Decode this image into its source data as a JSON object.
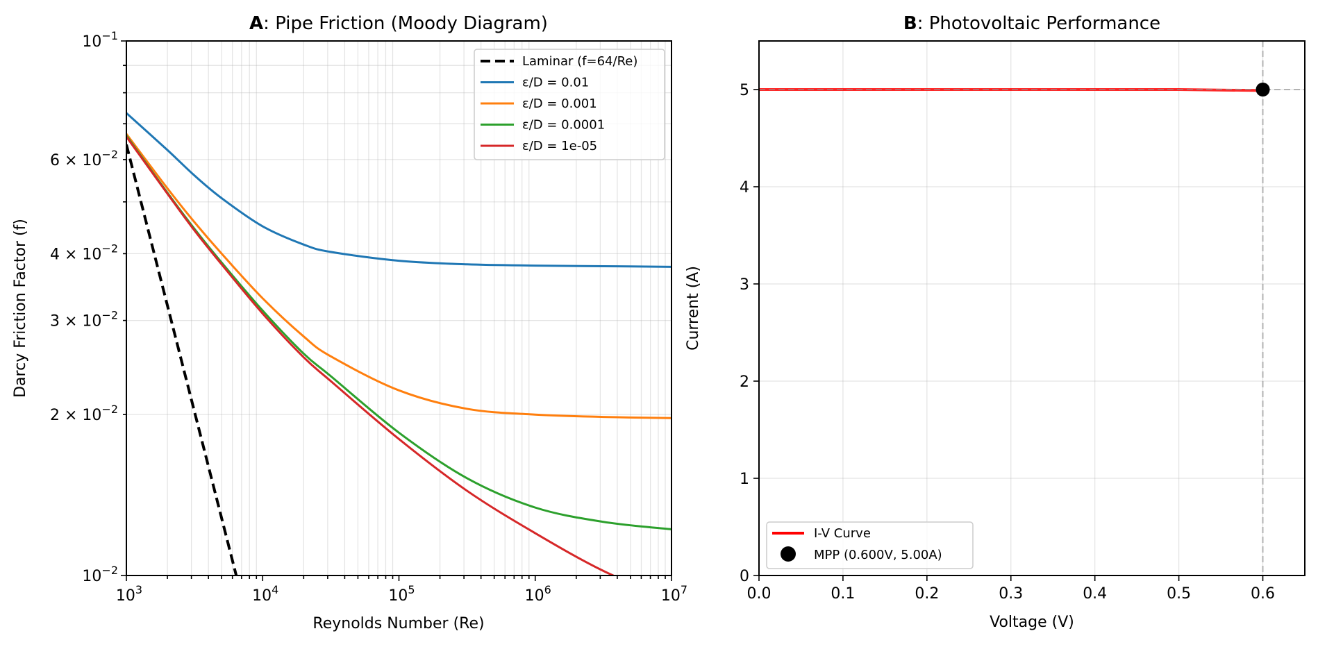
{
  "chart_data": [
    {
      "id": "A",
      "type": "line",
      "title_bold": "A",
      "title_rest": ": Pipe Friction (Moody Diagram)",
      "xlabel": "Reynolds Number (Re)",
      "ylabel": "Darcy Friction Factor (f)",
      "xscale": "log",
      "yscale": "log",
      "xlim": [
        1000,
        10000000
      ],
      "ylim": [
        0.01,
        0.1
      ],
      "xticks": [
        {
          "value": 1000,
          "base": "10",
          "exp": "3"
        },
        {
          "value": 10000,
          "base": "10",
          "exp": "4"
        },
        {
          "value": 100000,
          "base": "10",
          "exp": "5"
        },
        {
          "value": 1000000,
          "base": "10",
          "exp": "6"
        },
        {
          "value": 10000000,
          "base": "10",
          "exp": "7"
        }
      ],
      "yticks": [
        {
          "value": 0.1,
          "base": "10",
          "exp": "−1"
        },
        {
          "value": 0.06,
          "base": "6 × 10",
          "exp": "−2"
        },
        {
          "value": 0.04,
          "base": "4 × 10",
          "exp": "−2"
        },
        {
          "value": 0.03,
          "base": "3 × 10",
          "exp": "−2"
        },
        {
          "value": 0.02,
          "base": "2 × 10",
          "exp": "−2"
        },
        {
          "value": 0.01,
          "base": "10",
          "exp": "−2"
        }
      ],
      "grid": true,
      "legend_position": "top-right",
      "series": [
        {
          "name": "Laminar (f=64/Re)",
          "color": "#000000",
          "dashed": true,
          "x": [
            1000,
            2000,
            3000,
            4000,
            5000,
            6400
          ],
          "y": [
            0.064,
            0.032,
            0.02133,
            0.016,
            0.0128,
            0.01
          ]
        },
        {
          "name": "ε/D = 0.01",
          "color": "#1f77b4",
          "dashed": false,
          "x": [
            1000,
            2000,
            3162,
            5000,
            10000,
            20000,
            31623,
            100000,
            316228,
            1000000,
            3162278,
            10000000
          ],
          "y": [
            0.0733,
            0.0625,
            0.056,
            0.0508,
            0.045,
            0.0416,
            0.0403,
            0.0388,
            0.0382,
            0.038,
            0.0379,
            0.0378
          ]
        },
        {
          "name": "ε/D = 0.001",
          "color": "#ff7f0e",
          "dashed": false,
          "x": [
            1000,
            2000,
            3162,
            5000,
            10000,
            20000,
            31623,
            100000,
            316228,
            1000000,
            3162278,
            10000000
          ],
          "y": [
            0.067,
            0.053,
            0.0458,
            0.04,
            0.033,
            0.028,
            0.0257,
            0.0222,
            0.0205,
            0.02,
            0.0198,
            0.0197
          ]
        },
        {
          "name": "ε/D = 0.0001",
          "color": "#2ca02c",
          "dashed": false,
          "x": [
            1000,
            2000,
            3162,
            5000,
            10000,
            20000,
            31623,
            100000,
            316228,
            1000000,
            3162278,
            10000000
          ],
          "y": [
            0.0665,
            0.052,
            0.0445,
            0.0385,
            0.0313,
            0.026,
            0.0236,
            0.0185,
            0.0152,
            0.0134,
            0.0126,
            0.0122
          ]
        },
        {
          "name": "ε/D = 1e-05",
          "color": "#d62728",
          "dashed": false,
          "x": [
            1000,
            2000,
            3162,
            5000,
            10000,
            20000,
            31623,
            100000,
            316228,
            1000000,
            3162278,
            10000000
          ],
          "y": [
            0.0662,
            0.0518,
            0.0442,
            0.0382,
            0.0309,
            0.0256,
            0.0231,
            0.018,
            0.0144,
            0.012,
            0.0102,
            0.009
          ]
        }
      ]
    },
    {
      "id": "B",
      "type": "line",
      "title_bold": "B",
      "title_rest": ": Photovoltaic Performance",
      "xlabel": "Voltage (V)",
      "ylabel": "Current (A)",
      "xlim": [
        0.0,
        0.65
      ],
      "ylim": [
        0,
        5.5
      ],
      "xticks": [
        "0.0",
        "0.1",
        "0.2",
        "0.3",
        "0.4",
        "0.5",
        "0.6"
      ],
      "yticks": [
        "0",
        "1",
        "2",
        "3",
        "4",
        "5"
      ],
      "grid": true,
      "legend_position": "lower-left",
      "series": [
        {
          "name": "I-V Curve",
          "color": "#ff0000",
          "x": [
            0.0,
            0.1,
            0.2,
            0.3,
            0.4,
            0.5,
            0.55,
            0.6
          ],
          "y": [
            5.0,
            5.0,
            5.0,
            5.0,
            5.0,
            5.0,
            4.995,
            4.99
          ]
        }
      ],
      "points": [
        {
          "name": "MPP (0.600V, 5.00A)",
          "x": 0.6,
          "y": 5.0,
          "color": "#000000"
        }
      ],
      "reference_lines": [
        {
          "orientation": "vertical",
          "value": 0.6,
          "color": "#999999",
          "dashed": true
        },
        {
          "orientation": "horizontal",
          "value": 5.0,
          "color": "#999999",
          "dashed": true
        }
      ]
    }
  ]
}
